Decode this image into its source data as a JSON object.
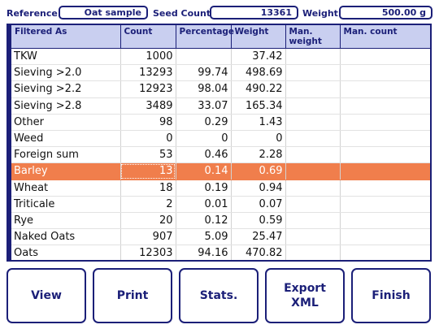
{
  "header": {
    "reference_label": "Reference:",
    "reference_value": "Oat sample",
    "seed_count_label": "Seed Count:",
    "seed_count_value": "13361",
    "weight_label": "Weight:",
    "weight_value": "500.00 g"
  },
  "table": {
    "columns": [
      "Filtered As",
      "Count",
      "Percentage",
      "Weight",
      "Man. weight",
      "Man. count"
    ],
    "selected_row": 7,
    "rows": [
      {
        "name": "TKW",
        "count": "1000",
        "percentage": "",
        "weight": "37.42",
        "man_weight": "",
        "man_count": ""
      },
      {
        "name": "Sieving >2.0",
        "count": "13293",
        "percentage": "99.74",
        "weight": "498.69",
        "man_weight": "",
        "man_count": ""
      },
      {
        "name": "Sieving >2.2",
        "count": "12923",
        "percentage": "98.04",
        "weight": "490.22",
        "man_weight": "",
        "man_count": ""
      },
      {
        "name": "Sieving >2.8",
        "count": "3489",
        "percentage": "33.07",
        "weight": "165.34",
        "man_weight": "",
        "man_count": ""
      },
      {
        "name": "Other",
        "count": "98",
        "percentage": "0.29",
        "weight": "1.43",
        "man_weight": "",
        "man_count": ""
      },
      {
        "name": "Weed",
        "count": "0",
        "percentage": "0",
        "weight": "0",
        "man_weight": "",
        "man_count": ""
      },
      {
        "name": "Foreign sum",
        "count": "53",
        "percentage": "0.46",
        "weight": "2.28",
        "man_weight": "",
        "man_count": ""
      },
      {
        "name": "Barley",
        "count": "13",
        "percentage": "0.14",
        "weight": "0.69",
        "man_weight": "",
        "man_count": ""
      },
      {
        "name": "Wheat",
        "count": "18",
        "percentage": "0.19",
        "weight": "0.94",
        "man_weight": "",
        "man_count": ""
      },
      {
        "name": "Triticale",
        "count": "2",
        "percentage": "0.01",
        "weight": "0.07",
        "man_weight": "",
        "man_count": ""
      },
      {
        "name": "Rye",
        "count": "20",
        "percentage": "0.12",
        "weight": "0.59",
        "man_weight": "",
        "man_count": ""
      },
      {
        "name": "Naked Oats",
        "count": "907",
        "percentage": "5.09",
        "weight": "25.47",
        "man_weight": "",
        "man_count": ""
      },
      {
        "name": "Oats",
        "count": "12303",
        "percentage": "94.16",
        "weight": "470.82",
        "man_weight": "",
        "man_count": ""
      }
    ]
  },
  "buttons": {
    "view": "View",
    "print": "Print",
    "stats": "Stats.",
    "export_xml": "Export\nXML",
    "finish": "Finish"
  },
  "colors": {
    "accent": "#1b1f78",
    "header_bg": "#c9cff0",
    "selected_row": "#f07e4c"
  }
}
